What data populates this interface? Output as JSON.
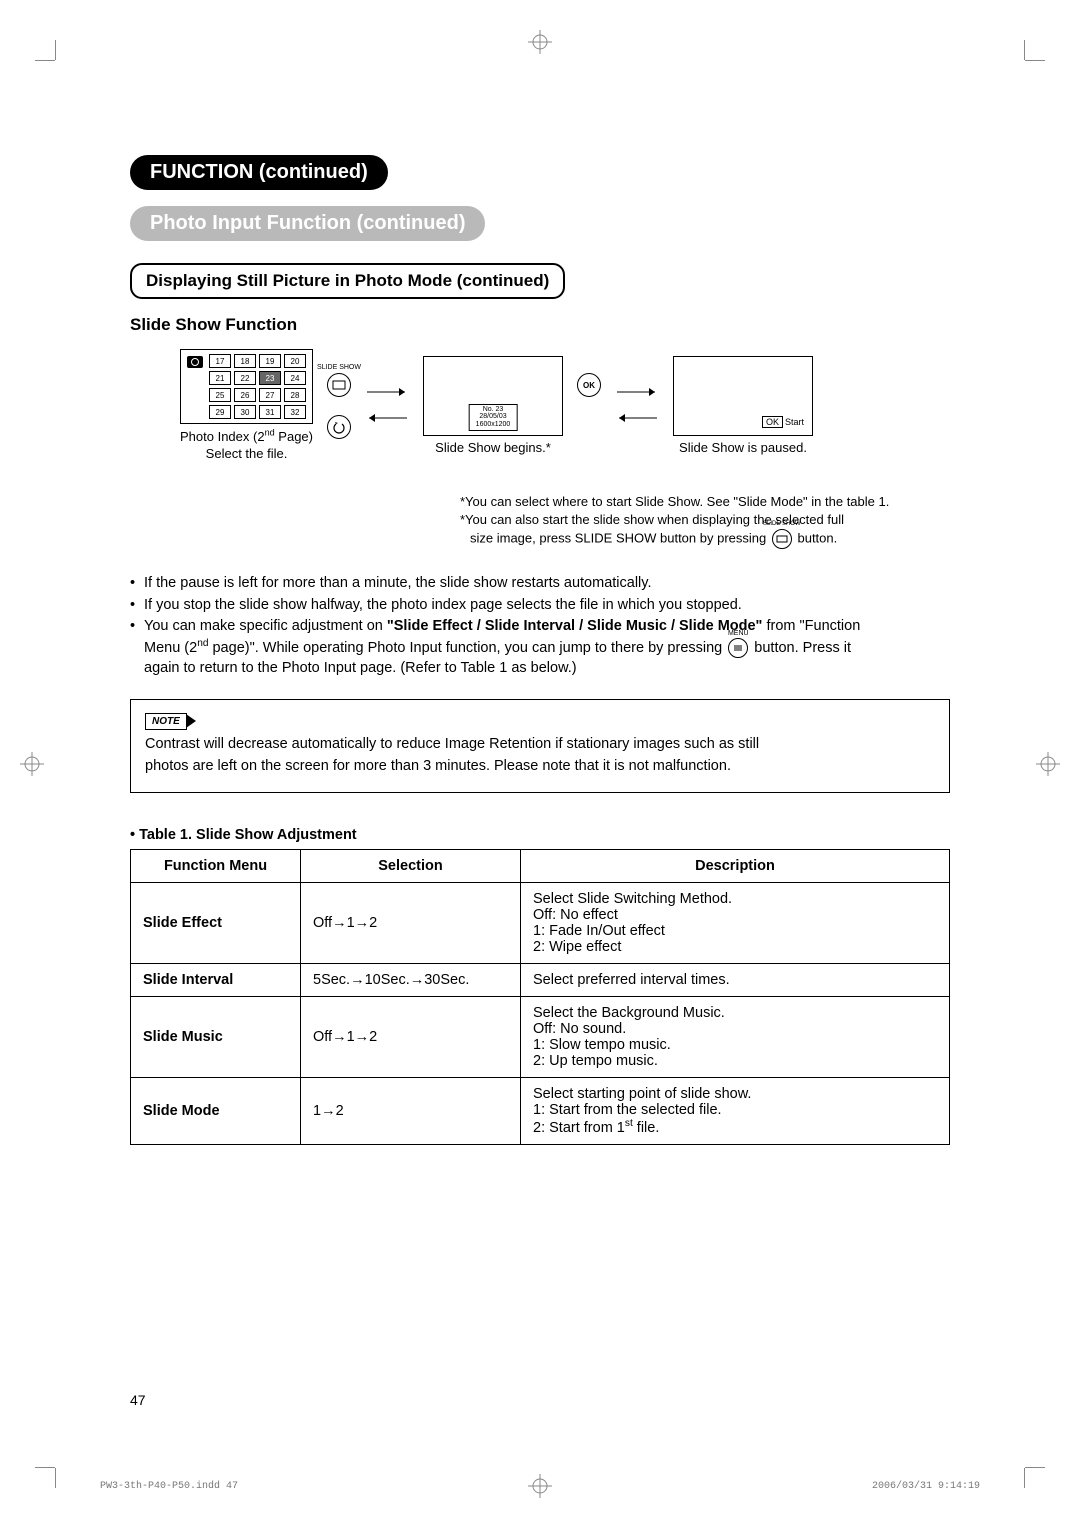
{
  "headers": {
    "function": "FUNCTION (continued)",
    "photo_input": "Photo Input Function (continued)",
    "still_picture": "Displaying Still Picture in Photo Mode (continued)",
    "slide_show": "Slide Show Function"
  },
  "flow": {
    "thumbs": [
      "17",
      "18",
      "19",
      "20",
      "21",
      "22",
      "23",
      "24",
      "25",
      "26",
      "27",
      "28",
      "29",
      "30",
      "31",
      "32"
    ],
    "selected_thumb": "23",
    "panel1_line1": "Photo Index (2",
    "panel1_sup": "nd",
    "panel1_line1b": " Page)",
    "panel1_line2": "Select the file.",
    "slide_show_label": "SLIDE SHOW",
    "info_no": "No. 23",
    "info_date": "28/05/03",
    "info_res": "1600x1200",
    "panel2_caption": "Slide Show begins.*",
    "ok_label": "OK",
    "ok_start": "Start",
    "panel3_caption": "Slide Show is paused."
  },
  "footnotes": {
    "f1": "*You can select where to start Slide Show. See \"Slide Mode\" in the table 1.",
    "f2a": "*You can also start the slide show when displaying the selected full",
    "f2b": "size image, press SLIDE SHOW button by pressing",
    "f2c": "button.",
    "icon_label": "SLIDE SHOW"
  },
  "bullets": {
    "b1": "If the pause is left for more than a minute, the slide show restarts automatically.",
    "b2": "If you stop the slide show halfway, the photo index page selects the file in which you stopped.",
    "b3a": "You can make specific adjustment on ",
    "b3bold": "\"Slide Effect / Slide Interval / Slide Music / Slide Mode\"",
    "b3b": " from \"Function",
    "b3c": "Menu (2",
    "b3sup": "nd",
    "b3d": " page)\". While operating Photo Input function, you can jump to there by pressing ",
    "b3e": " button.  Press it",
    "b3f": "again to return to the Photo Input page. (Refer to Table 1 as below.)",
    "menu_label": "MENU"
  },
  "note": {
    "label": "NOTE",
    "text1": "Contrast will decrease automatically to reduce Image Retention if stationary images such as still",
    "text2": "photos are left on the screen for more than 3 minutes. Please note that it is not malfunction."
  },
  "table": {
    "title": "• Table 1. Slide Show Adjustment",
    "headers": [
      "Function Menu",
      "Selection",
      "Description"
    ],
    "rows": [
      {
        "menu": "Slide Effect",
        "selection": "Off→1→2",
        "desc": "Select Slide Switching Method.\nOff: No effect\n1: Fade In/Out effect\n2: Wipe effect"
      },
      {
        "menu": "Slide Interval",
        "selection": "5Sec.→10Sec.→30Sec.",
        "desc": "Select preferred interval times."
      },
      {
        "menu": "Slide Music",
        "selection": "Off→1→2",
        "desc": "Select the Background Music.\nOff: No sound.\n1: Slow tempo music.\n2: Up tempo music."
      },
      {
        "menu": "Slide Mode",
        "selection": "1→2",
        "desc_pre": "Select starting point of slide show.\n1: Start from the selected file.\n2: Start from 1",
        "desc_sup": "st",
        "desc_post": " file."
      }
    ]
  },
  "page_number": "47",
  "footer_left": "PW3-3th-P40-P50.indd   47",
  "footer_right": "2006/03/31   9:14:19"
}
